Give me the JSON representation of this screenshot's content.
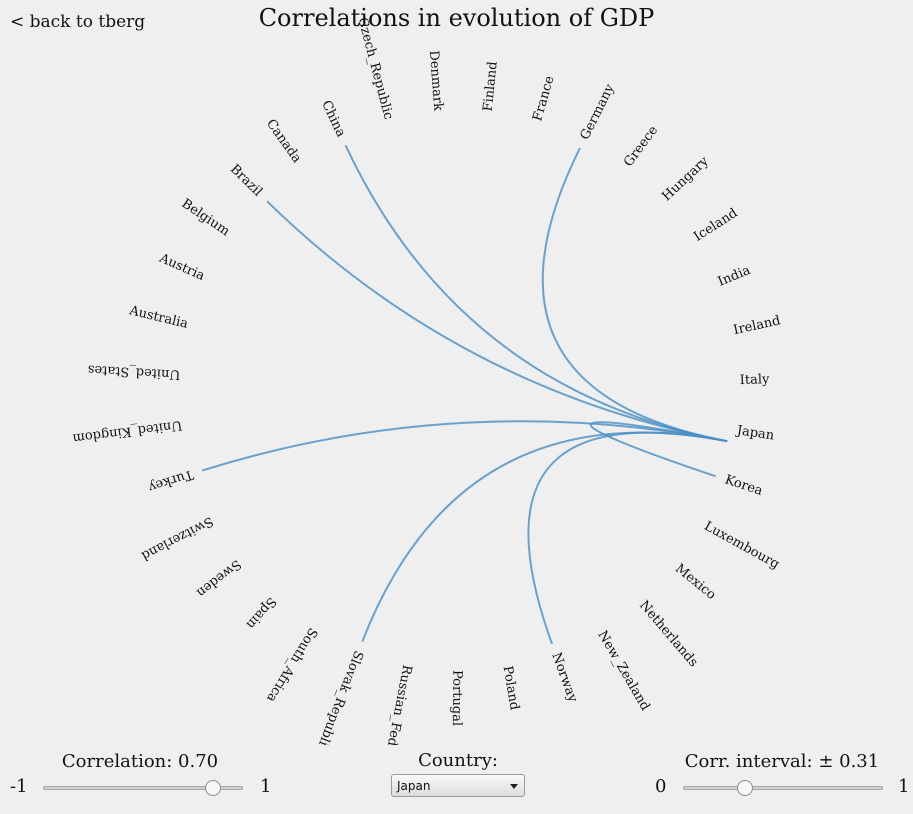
{
  "header": {
    "back_link": "< back to tberg",
    "title": "Correlations in evolution of GDP"
  },
  "chart_data": {
    "type": "chord",
    "selected": "Japan",
    "countries": [
      "Australia",
      "Austria",
      "Belgium",
      "Brazil",
      "Canada",
      "China",
      "Czech_Republic",
      "Denmark",
      "Finland",
      "France",
      "Germany",
      "Greece",
      "Hungary",
      "Iceland",
      "India",
      "Ireland",
      "Italy",
      "Japan",
      "Korea",
      "Luxembourg",
      "Mexico",
      "Netherlands",
      "New_Zealand",
      "Norway",
      "Poland",
      "Portugal",
      "Russian_Federation",
      "Slovak_Republic",
      "South_Africa",
      "Spain",
      "Sweden",
      "Switzerland",
      "Turkey",
      "United_Kingdom",
      "United_States"
    ],
    "links": [
      {
        "target": "Brazil"
      },
      {
        "target": "China"
      },
      {
        "target": "Germany"
      },
      {
        "target": "Korea"
      },
      {
        "target": "Norway"
      },
      {
        "target": "Slovak_Republic"
      },
      {
        "target": "Turkey"
      }
    ],
    "link_color": "#4a8fc4"
  },
  "controls": {
    "correlation": {
      "label": "Correlation: 0.70",
      "min_label": "-1",
      "max_label": "1",
      "min": -1,
      "max": 1,
      "value": 0.7
    },
    "country": {
      "label": "Country:",
      "selected": "Japan"
    },
    "interval": {
      "label": "Corr. interval: ± 0.31",
      "min_label": "0",
      "max_label": "1",
      "min": 0,
      "max": 1,
      "value": 0.31
    }
  }
}
